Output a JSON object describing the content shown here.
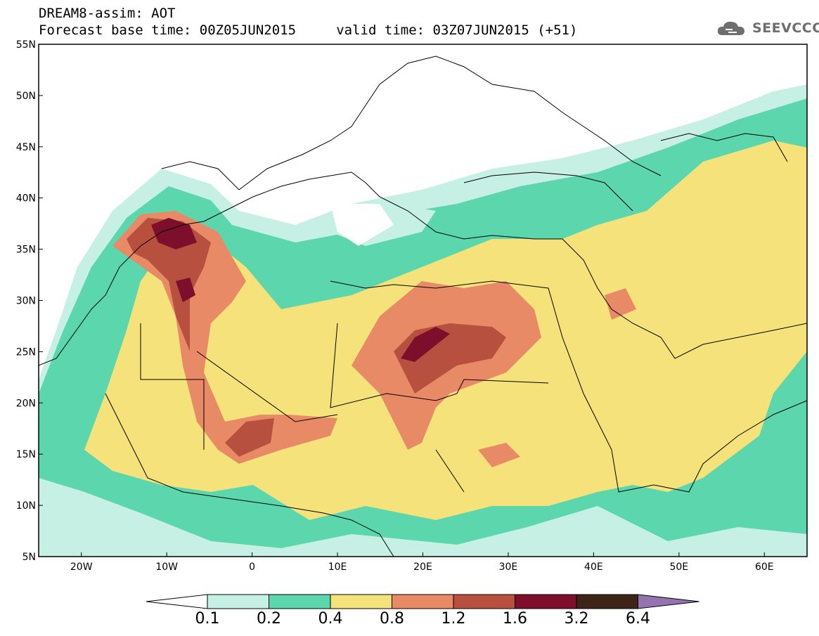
{
  "header": {
    "line1": "DREAM8-assim: AOT",
    "line2": "Forecast base time: 00Z05JUN2015     valid time: 03Z07JUN2015 (+51)"
  },
  "logo": {
    "text": "SEEVCCC",
    "icon": "cloud-icon"
  },
  "map": {
    "variable": "AOT",
    "lon_range": [
      -25,
      65
    ],
    "lat_range": [
      5,
      55
    ],
    "lat_ticks": [
      {
        "value": 55,
        "label": "55N"
      },
      {
        "value": 50,
        "label": "50N"
      },
      {
        "value": 45,
        "label": "45N"
      },
      {
        "value": 40,
        "label": "40N"
      },
      {
        "value": 35,
        "label": "35N"
      },
      {
        "value": 30,
        "label": "30N"
      },
      {
        "value": 25,
        "label": "25N"
      },
      {
        "value": 20,
        "label": "20N"
      },
      {
        "value": 15,
        "label": "15N"
      },
      {
        "value": 10,
        "label": "10N"
      },
      {
        "value": 5,
        "label": "5N"
      }
    ],
    "lon_ticks": [
      {
        "value": -20,
        "label": "20W"
      },
      {
        "value": -10,
        "label": "10W"
      },
      {
        "value": 0,
        "label": "0"
      },
      {
        "value": 10,
        "label": "10E"
      },
      {
        "value": 20,
        "label": "20E"
      },
      {
        "value": 30,
        "label": "30E"
      },
      {
        "value": 40,
        "label": "40E"
      },
      {
        "value": 50,
        "label": "50E"
      },
      {
        "value": 60,
        "label": "60E"
      }
    ]
  },
  "colorbar": {
    "levels": [
      "0.1",
      "0.2",
      "0.4",
      "0.8",
      "1.2",
      "1.6",
      "3.2",
      "6.4"
    ],
    "colors": [
      "#ffffff",
      "#c6f0e4",
      "#5cd6ac",
      "#f5e27a",
      "#e88a66",
      "#b8503f",
      "#7d0f2c",
      "#3d2416",
      "#9474b0"
    ]
  }
}
